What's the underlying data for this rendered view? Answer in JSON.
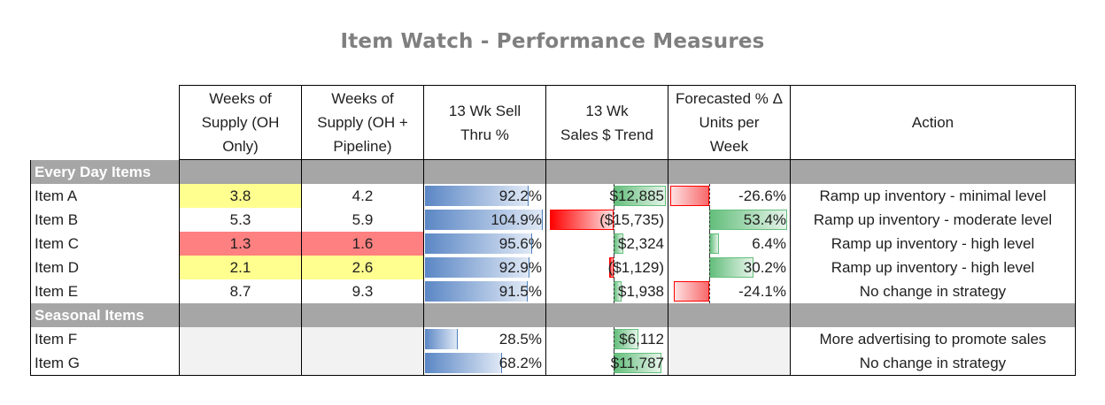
{
  "title": "Item Watch - Performance Measures",
  "headers": {
    "wos_oh": [
      "Weeks of",
      "Supply (OH",
      "Only)"
    ],
    "wos_pipe": [
      "Weeks of",
      "Supply (OH +",
      "Pipeline)"
    ],
    "sell_thru": [
      "13 Wk Sell",
      "Thru %"
    ],
    "sales_trend": [
      "13 Wk",
      "Sales $ Trend"
    ],
    "forecast": [
      "Forecasted % Δ",
      "Units per",
      "Week"
    ],
    "action": "Action"
  },
  "sections": {
    "everyday": "Every Day Items",
    "seasonal": "Seasonal Items"
  },
  "rows": [
    {
      "item": "Item A",
      "wos_oh": "3.8",
      "wos_pipe": "4.2",
      "sell_thru": "92.2%",
      "sell_thru_value": 92.2,
      "sales_trend": "$12,885",
      "sales_trend_value": 12885,
      "forecast": "-26.6%",
      "forecast_value": -26.6,
      "action": "Ramp up inventory - minimal level"
    },
    {
      "item": "Item B",
      "wos_oh": "5.3",
      "wos_pipe": "5.9",
      "sell_thru": "104.9%",
      "sell_thru_value": 104.9,
      "sales_trend": "($15,735)",
      "sales_trend_value": -15735,
      "forecast": "53.4%",
      "forecast_value": 53.4,
      "action": "Ramp up inventory - moderate level"
    },
    {
      "item": "Item C",
      "wos_oh": "1.3",
      "wos_pipe": "1.6",
      "sell_thru": "95.6%",
      "sell_thru_value": 95.6,
      "sales_trend": "$2,324",
      "sales_trend_value": 2324,
      "forecast": "6.4%",
      "forecast_value": 6.4,
      "action": "Ramp up inventory - high level"
    },
    {
      "item": "Item D",
      "wos_oh": "2.1",
      "wos_pipe": "2.6",
      "sell_thru": "92.9%",
      "sell_thru_value": 92.9,
      "sales_trend": "($1,129)",
      "sales_trend_value": -1129,
      "forecast": "30.2%",
      "forecast_value": 30.2,
      "action": "Ramp up inventory - high level"
    },
    {
      "item": "Item E",
      "wos_oh": "8.7",
      "wos_pipe": "9.3",
      "sell_thru": "91.5%",
      "sell_thru_value": 91.5,
      "sales_trend": "$1,938",
      "sales_trend_value": 1938,
      "forecast": "-24.1%",
      "forecast_value": -24.1,
      "action": "No change in strategy"
    },
    {
      "item": "Item F",
      "wos_oh": "",
      "wos_pipe": "",
      "sell_thru": "28.5%",
      "sell_thru_value": 28.5,
      "sales_trend": "$6,112",
      "sales_trend_value": 6112,
      "forecast": "",
      "forecast_value": null,
      "action": "More advertising to promote sales"
    },
    {
      "item": "Item G",
      "wos_oh": "",
      "wos_pipe": "",
      "sell_thru": "68.2%",
      "sell_thru_value": 68.2,
      "sales_trend": "$11,787",
      "sales_trend_value": 11787,
      "forecast": "",
      "forecast_value": null,
      "action": "No change in strategy"
    }
  ],
  "colors": {
    "yellow": "#ffff8f",
    "red": "#ff8080",
    "header_gray": "#a6a6a6",
    "blue_bar": "#5b87c5",
    "green_bar": "#63be7b",
    "red_bar": "#f8696b"
  }
}
